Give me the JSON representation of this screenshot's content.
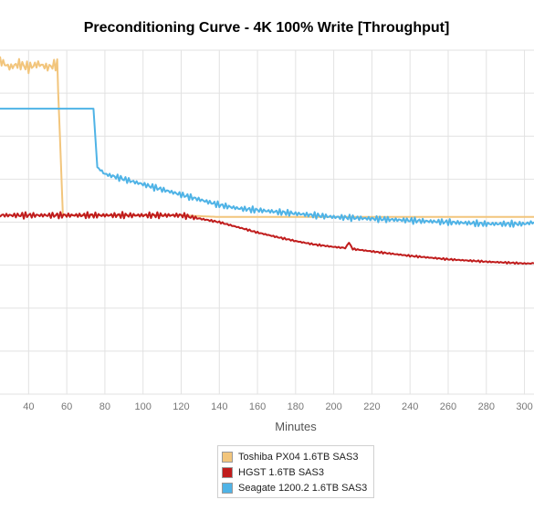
{
  "chart_data": {
    "type": "line",
    "title": "Preconditioning Curve - 4K 100% Write [Throughput]",
    "xlabel": "Minutes",
    "ylabel": "",
    "xlim": [
      25,
      305
    ],
    "ylim": [
      0,
      10
    ],
    "y_ticks_visible": false,
    "x_ticks": [
      40,
      60,
      80,
      100,
      120,
      140,
      160,
      180,
      200,
      220,
      240,
      260,
      280,
      300
    ],
    "grid": true,
    "legend_position": "bottom-center",
    "series": [
      {
        "name": "Toshiba PX04 1.6TB SAS3",
        "color": "#f2c57c",
        "x": [
          25,
          30,
          35,
          40,
          45,
          50,
          55,
          55.5,
          58,
          60,
          80,
          100,
          120,
          140,
          160,
          180,
          200,
          220,
          240,
          260,
          280,
          300,
          305
        ],
        "y": [
          9.7,
          9.5,
          9.6,
          9.5,
          9.6,
          9.5,
          9.6,
          8.8,
          5.2,
          5.2,
          5.2,
          5.2,
          5.2,
          5.15,
          5.15,
          5.15,
          5.15,
          5.15,
          5.15,
          5.15,
          5.15,
          5.15,
          5.15
        ],
        "jitter": [
          0.18,
          0.18,
          0.18,
          0.18,
          0.18,
          0.18,
          0.18,
          0,
          0,
          0,
          0,
          0,
          0,
          0,
          0,
          0,
          0,
          0,
          0,
          0,
          0,
          0,
          0
        ]
      },
      {
        "name": "HGST 1.6TB SAS3",
        "color": "#c01c1c",
        "x": [
          25,
          40,
          60,
          80,
          100,
          120,
          130,
          140,
          150,
          160,
          170,
          180,
          190,
          200,
          206,
          208,
          210,
          220,
          240,
          260,
          280,
          300,
          305
        ],
        "y": [
          5.2,
          5.2,
          5.2,
          5.2,
          5.2,
          5.2,
          5.1,
          5.0,
          4.85,
          4.7,
          4.57,
          4.45,
          4.35,
          4.28,
          4.25,
          4.4,
          4.22,
          4.15,
          4.02,
          3.92,
          3.85,
          3.8,
          3.8
        ],
        "jitter": [
          0.1,
          0.1,
          0.1,
          0.1,
          0.1,
          0.1,
          0.05,
          0.03,
          0.03,
          0.03,
          0.03,
          0.03,
          0.03,
          0.03,
          0.03,
          0,
          0.03,
          0.03,
          0.03,
          0.03,
          0.03,
          0.03,
          0.03
        ]
      },
      {
        "name": "Seagate 1200.2 1.6TB SAS3",
        "color": "#4fb3e6",
        "x": [
          25,
          40,
          60,
          70,
          74,
          76,
          80,
          90,
          100,
          110,
          120,
          130,
          140,
          150,
          160,
          170,
          180,
          200,
          220,
          240,
          260,
          280,
          300,
          305
        ],
        "y": [
          8.3,
          8.3,
          8.3,
          8.3,
          8.3,
          6.6,
          6.4,
          6.25,
          6.1,
          5.95,
          5.8,
          5.65,
          5.5,
          5.4,
          5.35,
          5.3,
          5.25,
          5.15,
          5.1,
          5.05,
          5.0,
          4.95,
          4.95,
          5.0
        ],
        "jitter": [
          0,
          0,
          0,
          0,
          0,
          0,
          0.1,
          0.1,
          0.1,
          0.1,
          0.1,
          0.1,
          0.1,
          0.1,
          0.1,
          0.1,
          0.1,
          0.1,
          0.1,
          0.1,
          0.1,
          0.1,
          0.1,
          0.1
        ]
      }
    ]
  }
}
